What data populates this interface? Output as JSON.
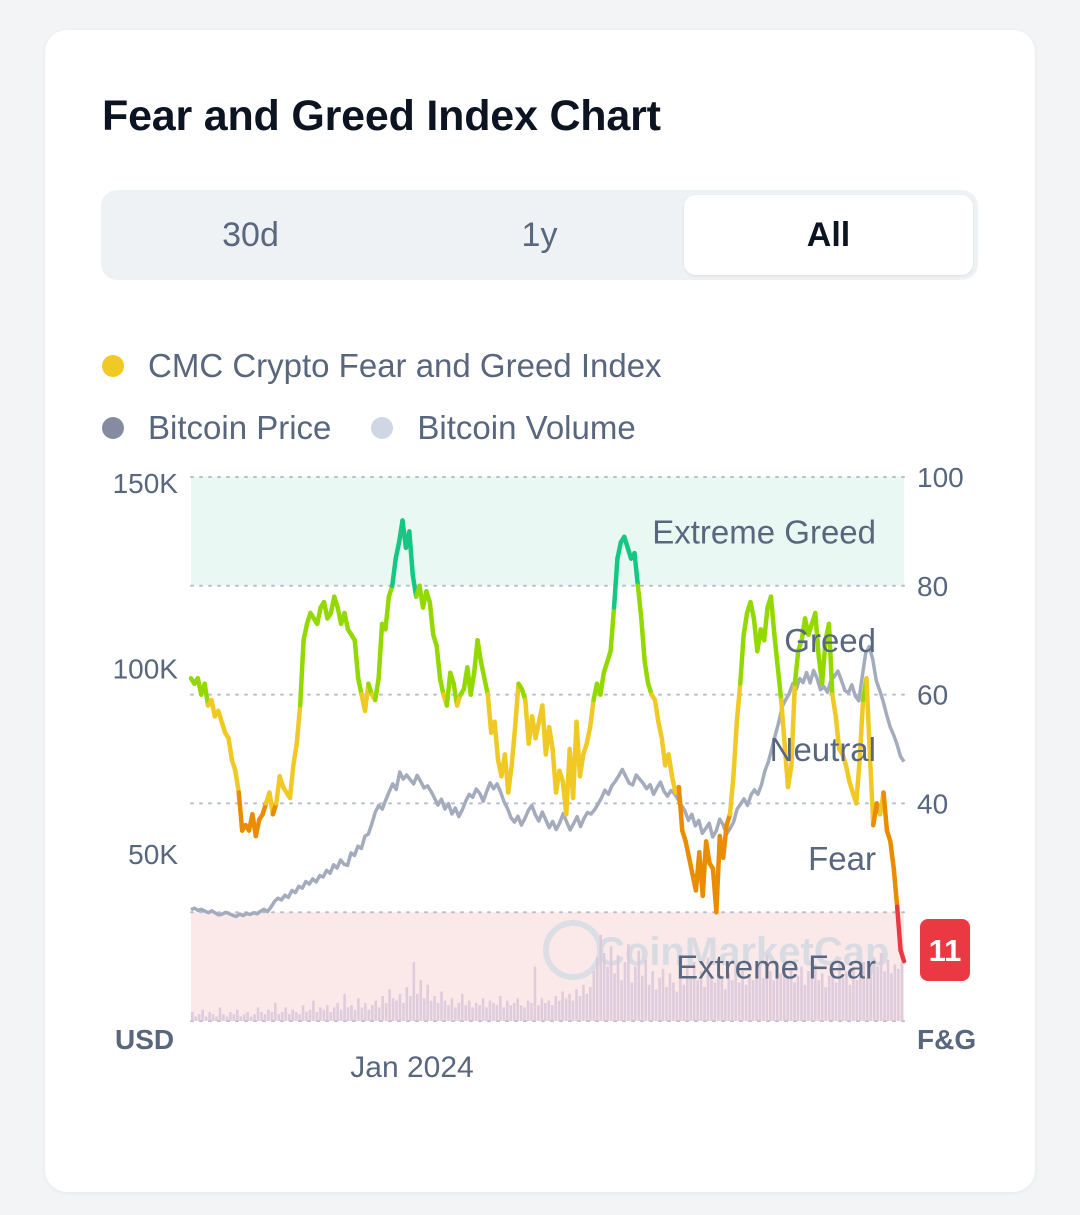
{
  "card": {
    "title": "Fear and Greed Index Chart"
  },
  "tabs": [
    {
      "label": "30d",
      "active": false
    },
    {
      "label": "1y",
      "active": false
    },
    {
      "label": "All",
      "active": true
    }
  ],
  "legend": [
    {
      "label": "CMC Crypto Fear and Greed Index",
      "color": "#f0c925"
    },
    {
      "label": "Bitcoin Price",
      "color": "#858ca2"
    },
    {
      "label": "Bitcoin Volume",
      "color": "#cfd6e4"
    }
  ],
  "watermark": "CoinMarketCap",
  "chart_data": {
    "type": "line",
    "left_axis": {
      "label": "USD",
      "ticks": [
        "150K",
        "100K",
        "50K"
      ],
      "tick_values": [
        150000,
        100000,
        50000
      ]
    },
    "right_axis": {
      "label": "F&G",
      "ticks": [
        "100",
        "80",
        "60",
        "40"
      ],
      "tick_values": [
        100,
        80,
        60,
        40
      ],
      "ylim": [
        0,
        100
      ]
    },
    "x_ticks": [
      {
        "label": "Jan 2024",
        "index": 0.31
      }
    ],
    "zones": [
      {
        "name": "Extreme Greed",
        "from": 80,
        "to": 100,
        "color": "#e9f8f3"
      },
      {
        "name": "Greed",
        "from": 60,
        "to": 80,
        "color": "transparent"
      },
      {
        "name": "Neutral",
        "from": 40,
        "to": 60,
        "color": "transparent"
      },
      {
        "name": "Fear",
        "from": 20,
        "to": 40,
        "color": "transparent"
      },
      {
        "name": "Extreme Fear",
        "from": 0,
        "to": 20,
        "color": "#fbe9ea"
      }
    ],
    "current_value": "11",
    "current_color": "#ea3943",
    "series": [
      {
        "name": "CMC Crypto Fear and Greed Index",
        "values": [
          63,
          62,
          63,
          60,
          62,
          58,
          59,
          56,
          57,
          55,
          53,
          52,
          48,
          46,
          42,
          35,
          36,
          35,
          38,
          34,
          37,
          38,
          40,
          42,
          38,
          40,
          45,
          43,
          42,
          41,
          47,
          51,
          58,
          70,
          73,
          75,
          74,
          73,
          76,
          77,
          74,
          75,
          78,
          76,
          73,
          75,
          72,
          71,
          70,
          63,
          60,
          57,
          62,
          60,
          59,
          63,
          73,
          72,
          78,
          80,
          85,
          88,
          92,
          87,
          90,
          82,
          78,
          80,
          76,
          79,
          77,
          71,
          69,
          63,
          60,
          58,
          64,
          62,
          58,
          60,
          61,
          65,
          60,
          64,
          70,
          66,
          63,
          60,
          53,
          55,
          48,
          45,
          49,
          42,
          47,
          54,
          62,
          61,
          59,
          51,
          56,
          52,
          55,
          58,
          49,
          54,
          50,
          42,
          46,
          44,
          38,
          50,
          41,
          55,
          45,
          49,
          51,
          54,
          59,
          62,
          60,
          64,
          66,
          68,
          76,
          85,
          88,
          89,
          87,
          85,
          86,
          80,
          74,
          66,
          62,
          60,
          59,
          55,
          52,
          47,
          49,
          45,
          42,
          43,
          35,
          33,
          30,
          27,
          24,
          31,
          23,
          33,
          29,
          28,
          20,
          34,
          30,
          36,
          38,
          45,
          55,
          62,
          71,
          75,
          77,
          74,
          68,
          72,
          70,
          76,
          78,
          71,
          65,
          59,
          51,
          43,
          47,
          62,
          68,
          70,
          74,
          71,
          73,
          75,
          67,
          62,
          70,
          73,
          60,
          56,
          50,
          49,
          47,
          44,
          42,
          40,
          48,
          59,
          63,
          49,
          36,
          40,
          38,
          42,
          35,
          33,
          28,
          21,
          13,
          11
        ],
        "color_by_zone": true
      },
      {
        "name": "Bitcoin Price",
        "values": [
          35000,
          35400,
          34800,
          35100,
          34600,
          34200,
          34700,
          34100,
          33600,
          33800,
          34300,
          33900,
          33500,
          33200,
          33800,
          33400,
          34000,
          33700,
          34200,
          33900,
          34600,
          35100,
          34500,
          35700,
          37200,
          38100,
          37600,
          38900,
          38300,
          40200,
          39600,
          41300,
          40800,
          42600,
          41900,
          43300,
          42500,
          44200,
          43800,
          45600,
          44800,
          47100,
          46200,
          48400,
          47300,
          46900,
          50300,
          49600,
          52100,
          51500,
          54800,
          55400,
          58200,
          61300,
          63100,
          62100,
          64600,
          66800,
          68900,
          67400,
          72100,
          70200,
          71300,
          70100,
          68900,
          71200,
          69600,
          67800,
          68400,
          66900,
          65100,
          63200,
          64800,
          62100,
          63600,
          60800,
          62400,
          60100,
          61900,
          64300,
          66100,
          65300,
          67500,
          66400,
          64200,
          66800,
          69200,
          67600,
          68900,
          66800,
          64100,
          62300,
          59800,
          58600,
          60200,
          57800,
          59600,
          61800,
          63100,
          60600,
          58900,
          61300,
          59200,
          57100,
          58800,
          56600,
          58400,
          60900,
          58700,
          56500,
          58200,
          60100,
          57400,
          59600,
          61200,
          60800,
          61900,
          63400,
          65100,
          67200,
          66100,
          68400,
          69600,
          71100,
          72800,
          70900,
          69100,
          68600,
          71300,
          70200,
          69100,
          67600,
          68700,
          66100,
          67900,
          69400,
          66900,
          65600,
          67100,
          66300,
          64800,
          63200,
          61600,
          59100,
          60700,
          57600,
          59100,
          55600,
          56900,
          58300,
          54600,
          56200,
          59400,
          57900,
          55400,
          56900,
          58600,
          62100,
          63400,
          64900,
          63100,
          65900,
          67300,
          66100,
          68600,
          72400,
          74900,
          78300,
          82100,
          85600,
          89800,
          91600,
          93200,
          95900,
          94400,
          97300,
          96200,
          98900,
          96100,
          99500,
          97400,
          94300,
          95100,
          93600,
          96800,
          97900,
          99300,
          96800,
          94100,
          93400,
          95600,
          92600,
          91300,
          97900,
          104200,
          105900,
          102600,
          96800,
          94100,
          91200,
          87600,
          84300,
          82100,
          79600,
          76300,
          74900
        ]
      },
      {
        "name": "Bitcoin Volume",
        "values": [
          4,
          2,
          3,
          5,
          2,
          4,
          3,
          2,
          6,
          3,
          2,
          4,
          3,
          5,
          2,
          3,
          4,
          2,
          3,
          6,
          4,
          3,
          5,
          4,
          8,
          3,
          4,
          6,
          3,
          5,
          4,
          3,
          7,
          4,
          5,
          9,
          4,
          6,
          5,
          7,
          4,
          6,
          8,
          5,
          12,
          6,
          7,
          5,
          10,
          6,
          8,
          5,
          7,
          9,
          6,
          11,
          8,
          14,
          10,
          9,
          12,
          8,
          15,
          11,
          26,
          12,
          18,
          10,
          16,
          9,
          11,
          8,
          13,
          9,
          7,
          10,
          6,
          8,
          12,
          7,
          9,
          6,
          8,
          7,
          10,
          6,
          9,
          8,
          7,
          11,
          6,
          9,
          7,
          8,
          10,
          7,
          6,
          9,
          8,
          24,
          7,
          10,
          8,
          9,
          7,
          11,
          9,
          13,
          10,
          12,
          9,
          14,
          11,
          16,
          12,
          15,
          22,
          28,
          38,
          30,
          24,
          33,
          21,
          29,
          18,
          26,
          34,
          17,
          24,
          31,
          20,
          27,
          16,
          22,
          14,
          19,
          23,
          15,
          21,
          17,
          13,
          20,
          16,
          24,
          19,
          26,
          18,
          22,
          15,
          28,
          20,
          17,
          23,
          19,
          14,
          21,
          18,
          25,
          17,
          22,
          16,
          20,
          18,
          24,
          27,
          19,
          29,
          22,
          18,
          25,
          21,
          26,
          19,
          23,
          17,
          20,
          24,
          16,
          22,
          19,
          25,
          18,
          21,
          15,
          20,
          23,
          17,
          26,
          19,
          22,
          16,
          24,
          18,
          21,
          26,
          19,
          23,
          28,
          24,
          30,
          22,
          27,
          21,
          25,
          23,
          26
        ]
      }
    ]
  }
}
